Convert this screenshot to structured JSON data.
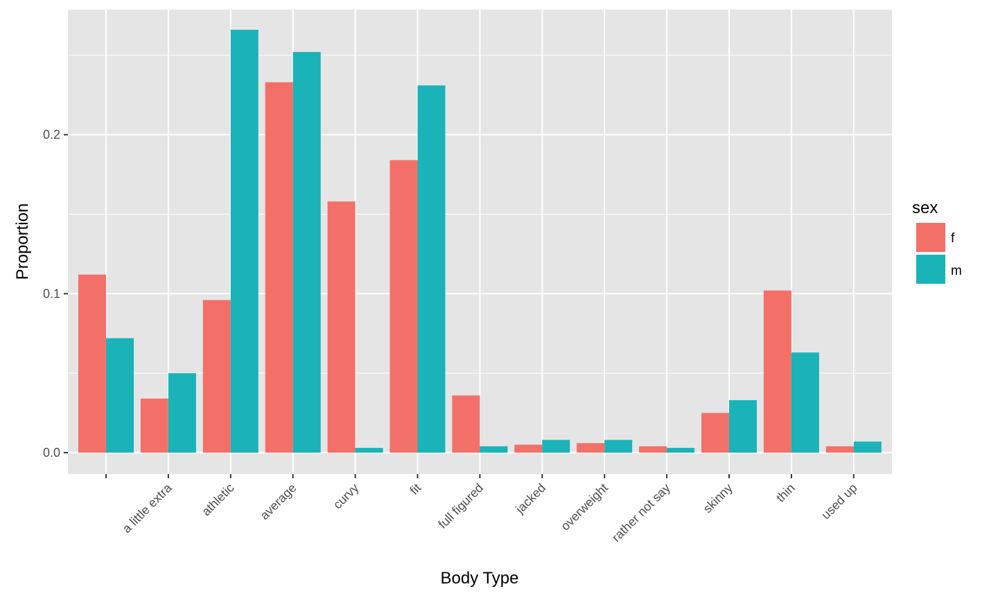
{
  "chart_data": {
    "type": "bar",
    "xlabel": "Body Type",
    "ylabel": "Proportion",
    "ylim": [
      -0.015,
      0.266
    ],
    "yticks": [
      0.0,
      0.1,
      0.2
    ],
    "ytick_labels": [
      "0.0",
      "0.1",
      "0.2"
    ],
    "grid": true,
    "legend_position": "right",
    "legend_title": "sex",
    "categories": [
      "",
      "a little extra",
      "athletic",
      "average",
      "curvy",
      "fit",
      "full figured",
      "jacked",
      "overweight",
      "rather not say",
      "skinny",
      "thin",
      "used up"
    ],
    "series": [
      {
        "name": "f",
        "color": "#F8766D",
        "values": [
          0.112,
          0.034,
          0.096,
          0.233,
          0.158,
          0.184,
          0.036,
          0.005,
          0.006,
          0.004,
          0.025,
          0.102,
          0.004
        ]
      },
      {
        "name": "m",
        "color": "#00BFC4",
        "values": [
          0.072,
          0.05,
          0.266,
          0.252,
          0.003,
          0.231,
          0.004,
          0.008,
          0.008,
          0.003,
          0.033,
          0.063,
          0.007
        ]
      }
    ]
  },
  "colors": {
    "panel_background": "#E5E5E5",
    "grid_line": "#FFFFFF",
    "tick_text": "#4D4D4D",
    "series_f": "#F37069",
    "series_m": "#1AB3B8"
  }
}
